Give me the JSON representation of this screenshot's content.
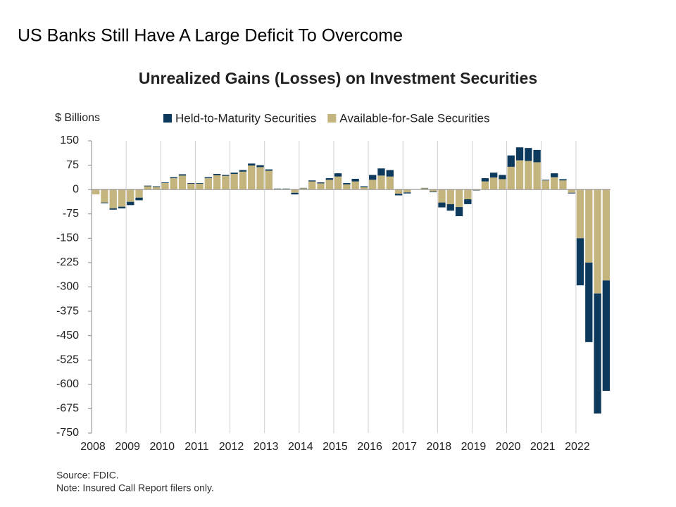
{
  "slide_title": "US Banks Still Have A Large Deficit To Overcome",
  "chart_data": {
    "type": "stacked_bar",
    "title": "Unrealized Gains (Losses) on Investment Securities",
    "y_label": "$ Billions",
    "categories": [
      "2008",
      null,
      null,
      null,
      "2009",
      null,
      null,
      null,
      "2010",
      null,
      null,
      null,
      "2011",
      null,
      null,
      null,
      "2012",
      null,
      null,
      null,
      "2013",
      null,
      null,
      null,
      "2014",
      null,
      null,
      null,
      "2015",
      null,
      null,
      null,
      "2016",
      null,
      null,
      null,
      "2017",
      null,
      null,
      null,
      "2018",
      null,
      null,
      null,
      "2019",
      null,
      null,
      null,
      "2020",
      null,
      null,
      null,
      "2021",
      null,
      null,
      null,
      "2022",
      null,
      null,
      null
    ],
    "series": [
      {
        "name": "Available-for-Sale Securities",
        "color": "#c4b47e",
        "values": [
          -15,
          -40,
          -58,
          -53,
          -38,
          -25,
          10,
          8,
          20,
          35,
          43,
          18,
          18,
          35,
          44,
          42,
          48,
          55,
          74,
          69,
          58,
          2,
          2,
          -10,
          4,
          25,
          19,
          30,
          40,
          16,
          25,
          7,
          30,
          43,
          40,
          -13,
          -9,
          0,
          4,
          -6,
          -40,
          -45,
          -54,
          -30,
          -2,
          25,
          37,
          32,
          70,
          90,
          88,
          84,
          28,
          38,
          28,
          -10,
          -150,
          -225,
          -320,
          -280
        ]
      },
      {
        "name": "Held-to-Maturity Securities",
        "color": "#0d3a5c",
        "values": [
          0,
          -2,
          -4,
          -5,
          -10,
          -8,
          2,
          2,
          2,
          3,
          4,
          2,
          2,
          3,
          4,
          3,
          4,
          5,
          6,
          6,
          4,
          1,
          1,
          -5,
          1,
          3,
          3,
          5,
          10,
          4,
          8,
          3,
          15,
          22,
          20,
          -5,
          -3,
          0,
          1,
          -2,
          -15,
          -20,
          -28,
          -15,
          -1,
          10,
          15,
          13,
          35,
          40,
          40,
          38,
          2,
          12,
          4,
          -2,
          -145,
          -245,
          -370,
          -340
        ]
      }
    ],
    "ylim": [
      -750,
      150
    ],
    "yticks": [
      150,
      75,
      0,
      -75,
      -150,
      -225,
      -300,
      -375,
      -450,
      -525,
      -600,
      -675,
      -750
    ],
    "grid": false,
    "xgrid": true,
    "legend": "top",
    "notes": [
      "Source: FDIC.",
      "Note: Insured Call Report filers only."
    ]
  }
}
